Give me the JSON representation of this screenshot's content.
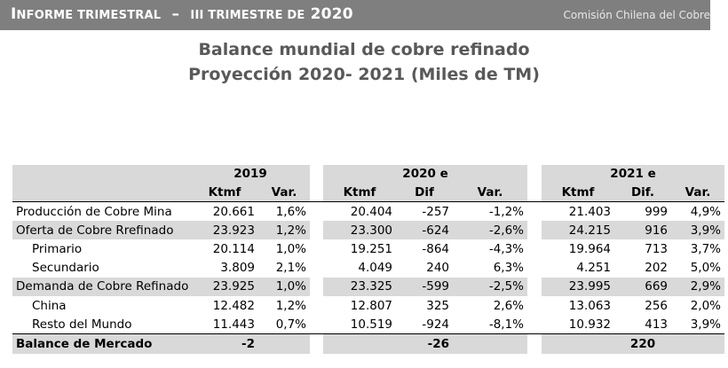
{
  "header": {
    "report_title_cap": "I",
    "report_title_rest": "NFORME TRIMESTRAL",
    "report_title_dash": "–",
    "report_title_quarter": "III TRIMESTRE DE",
    "report_year": "2020",
    "organization": "Comisión Chilena del Cobre"
  },
  "title": {
    "line1": "Balance mundial de cobre refinado",
    "line2": "Proyección 2020- 2021 (Miles de TM)"
  },
  "table": {
    "years": [
      "2019",
      "2020 e",
      "2021 e"
    ],
    "columns": [
      "Ktmf",
      "Var.",
      "Ktmf",
      "Dif",
      "Var.",
      "Ktmf",
      "Dif.",
      "Var."
    ],
    "rows": [
      {
        "label": "Producción de Cobre Mina",
        "values": [
          "20.661",
          "1,6%",
          "20.404",
          "-257",
          "-1,2%",
          "21.403",
          "999",
          "4,9%"
        ]
      },
      {
        "label": "Oferta de Cobre Rrefinado",
        "values": [
          "23.923",
          "1,2%",
          "23.300",
          "-624",
          "-2,6%",
          "24.215",
          "916",
          "3,9%"
        ]
      },
      {
        "label": "Primario",
        "values": [
          "20.114",
          "1,0%",
          "19.251",
          "-864",
          "-4,3%",
          "19.964",
          "713",
          "3,7%"
        ]
      },
      {
        "label": "Secundario",
        "values": [
          "3.809",
          "2,1%",
          "4.049",
          "240",
          "6,3%",
          "4.251",
          "202",
          "5,0%"
        ]
      },
      {
        "label": "Demanda de Cobre Refinado",
        "values": [
          "23.925",
          "1,0%",
          "23.325",
          "-599",
          "-2,5%",
          "23.995",
          "669",
          "2,9%"
        ]
      },
      {
        "label": "China",
        "values": [
          "12.482",
          "1,2%",
          "12.807",
          "325",
          "2,6%",
          "13.063",
          "256",
          "2,0%"
        ]
      },
      {
        "label": "Resto del Mundo",
        "values": [
          "11.443",
          "0,7%",
          "10.519",
          "-924",
          "-8,1%",
          "10.932",
          "413",
          "3,9%"
        ]
      }
    ],
    "balance": {
      "label": "Balance de Mercado",
      "v2019": "-2",
      "v2020": "-26",
      "v2021": "220"
    }
  }
}
